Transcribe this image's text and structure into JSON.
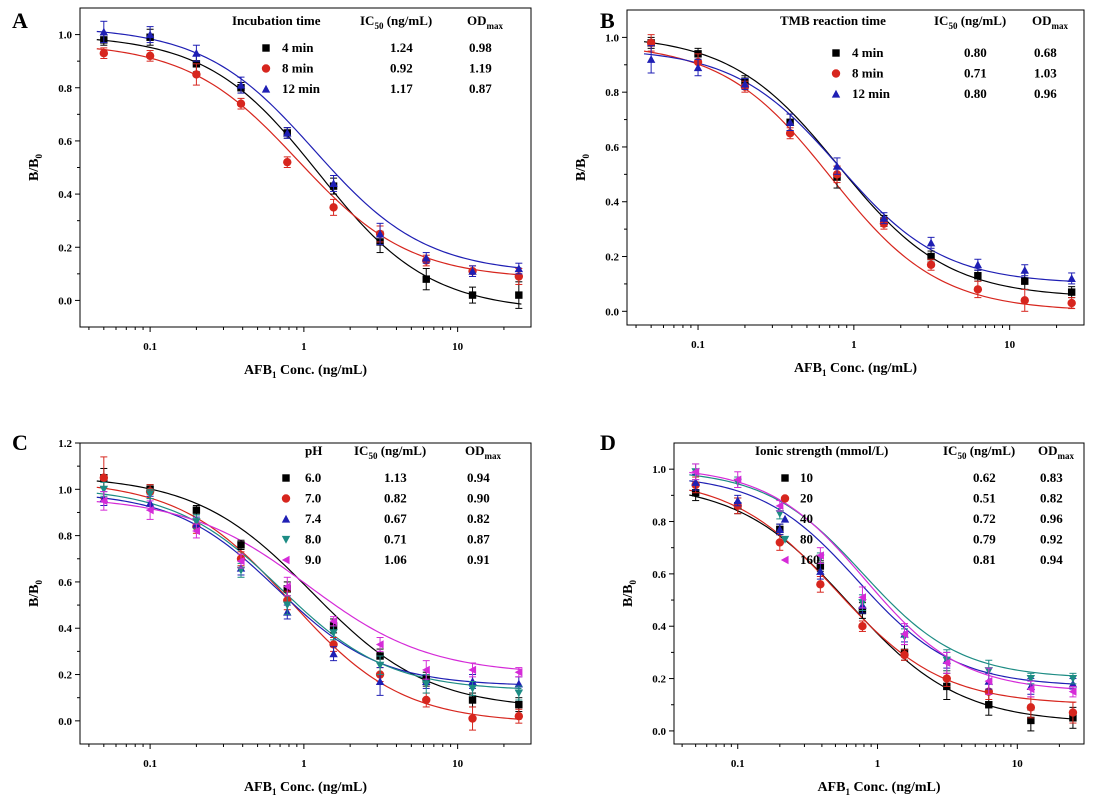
{
  "colors": {
    "black": "#000000",
    "red": "#d7261e",
    "blue": "#1f1fb4",
    "teal": "#1d8c84",
    "magenta": "#d52bd8"
  },
  "xlabel_parts": [
    "AFB",
    "1",
    " Conc. (ng/mL)"
  ],
  "ylabel_parts": [
    "B/B",
    "0"
  ],
  "chart_data": [
    {
      "panel": "A",
      "type": "scatter",
      "xlabel": "AFB1 Conc. (ng/mL)",
      "ylabel": "B/B0",
      "xscale": "log",
      "xlim": [
        0.035,
        30
      ],
      "ylim": [
        -0.1,
        1.1
      ],
      "xticks": [
        0.1,
        1,
        10
      ],
      "xtick_labels": [
        "0.1",
        "1",
        "10"
      ],
      "yticks": [
        0.0,
        0.2,
        0.4,
        0.6,
        0.8,
        1.0
      ],
      "ytick_labels": [
        "0.0",
        "0.2",
        "0.4",
        "0.6",
        "0.8",
        "1.0"
      ],
      "legend_header": [
        "Incubation time",
        "IC50 (ng/mL)",
        "ODmax"
      ],
      "x": [
        0.05,
        0.1,
        0.2,
        0.39,
        0.78,
        1.56,
        3.13,
        6.25,
        12.5,
        25
      ],
      "series": [
        {
          "name": "4 min",
          "ic50": "1.24",
          "odmax": "0.98",
          "color": "#000000",
          "marker": "square",
          "values": [
            0.98,
            0.99,
            0.89,
            0.8,
            0.63,
            0.43,
            0.22,
            0.08,
            0.02,
            0.02
          ],
          "errors": [
            0.02,
            0.03,
            0.03,
            0.02,
            0.02,
            0.03,
            0.04,
            0.04,
            0.03,
            0.05
          ],
          "fit": {
            "top": 1.0,
            "bottom": -0.04,
            "ic50": 1.24,
            "hill": 1.2
          }
        },
        {
          "name": "8 min",
          "ic50": "0.92",
          "odmax": "1.19",
          "color": "#d7261e",
          "marker": "circle",
          "values": [
            0.93,
            0.92,
            0.85,
            0.74,
            0.52,
            0.35,
            0.25,
            0.15,
            0.11,
            0.09
          ],
          "errors": [
            0.02,
            0.02,
            0.04,
            0.02,
            0.02,
            0.03,
            0.03,
            0.02,
            0.02,
            0.03
          ],
          "fit": {
            "top": 0.97,
            "bottom": 0.08,
            "ic50": 0.92,
            "hill": 1.2
          }
        },
        {
          "name": "12 min",
          "ic50": "1.17",
          "odmax": "0.87",
          "color": "#1f1fb4",
          "marker": "triangle",
          "values": [
            1.01,
            1.0,
            0.93,
            0.81,
            0.63,
            0.44,
            0.25,
            0.16,
            0.11,
            0.12
          ],
          "errors": [
            0.04,
            0.03,
            0.03,
            0.03,
            0.02,
            0.03,
            0.04,
            0.02,
            0.02,
            0.02
          ],
          "fit": {
            "top": 1.03,
            "bottom": 0.1,
            "ic50": 1.17,
            "hill": 1.2
          }
        }
      ]
    },
    {
      "panel": "B",
      "type": "scatter",
      "xlabel": "AFB1 Conc. (ng/mL)",
      "ylabel": "B/B0",
      "xscale": "log",
      "xlim": [
        0.035,
        30
      ],
      "ylim": [
        -0.05,
        1.1
      ],
      "xticks": [
        0.1,
        1,
        10
      ],
      "xtick_labels": [
        "0.1",
        "1",
        "10"
      ],
      "yticks": [
        0.0,
        0.2,
        0.4,
        0.6,
        0.8,
        1.0
      ],
      "ytick_labels": [
        "0.0",
        "0.2",
        "0.4",
        "0.6",
        "0.8",
        "1.0"
      ],
      "legend_header": [
        "TMB reaction time",
        "IC50 (ng/mL)",
        "ODmax"
      ],
      "x": [
        0.05,
        0.1,
        0.2,
        0.39,
        0.78,
        1.56,
        3.13,
        6.25,
        12.5,
        25
      ],
      "series": [
        {
          "name": "4 min",
          "ic50": "0.80",
          "odmax": "0.68",
          "color": "#000000",
          "marker": "square",
          "values": [
            0.98,
            0.94,
            0.84,
            0.69,
            0.49,
            0.33,
            0.2,
            0.13,
            0.11,
            0.07
          ],
          "errors": [
            0.02,
            0.02,
            0.02,
            0.03,
            0.04,
            0.02,
            0.02,
            0.02,
            0.03,
            0.02
          ],
          "fit": {
            "top": 1.01,
            "bottom": 0.05,
            "ic50": 0.8,
            "hill": 1.25
          }
        },
        {
          "name": "8 min",
          "ic50": "0.71",
          "odmax": "1.03",
          "color": "#d7261e",
          "marker": "circle",
          "values": [
            0.98,
            0.91,
            0.82,
            0.65,
            0.5,
            0.32,
            0.17,
            0.08,
            0.04,
            0.03
          ],
          "errors": [
            0.03,
            0.03,
            0.02,
            0.02,
            0.03,
            0.02,
            0.02,
            0.03,
            0.04,
            0.02
          ],
          "fit": {
            "top": 0.98,
            "bottom": 0.0,
            "ic50": 0.71,
            "hill": 1.25
          }
        },
        {
          "name": "12 min",
          "ic50": "0.80",
          "odmax": "0.96",
          "color": "#1f1fb4",
          "marker": "triangle",
          "values": [
            0.92,
            0.89,
            0.83,
            0.69,
            0.53,
            0.34,
            0.25,
            0.17,
            0.15,
            0.12
          ],
          "errors": [
            0.05,
            0.03,
            0.02,
            0.03,
            0.03,
            0.02,
            0.02,
            0.02,
            0.02,
            0.02
          ],
          "fit": {
            "top": 0.96,
            "bottom": 0.1,
            "ic50": 0.8,
            "hill": 1.3
          }
        }
      ]
    },
    {
      "panel": "C",
      "type": "scatter",
      "xlabel": "AFB1 Conc. (ng/mL)",
      "ylabel": "B/B0",
      "xscale": "log",
      "xlim": [
        0.035,
        30
      ],
      "ylim": [
        -0.1,
        1.2
      ],
      "xticks": [
        0.1,
        1,
        10
      ],
      "xtick_labels": [
        "0.1",
        "1",
        "10"
      ],
      "yticks": [
        0.0,
        0.2,
        0.4,
        0.6,
        0.8,
        1.0,
        1.2
      ],
      "ytick_labels": [
        "0.0",
        "0.2",
        "0.4",
        "0.6",
        "0.8",
        "1.0",
        "1.2"
      ],
      "legend_header": [
        "pH",
        "IC50 (ng/mL)",
        "ODmax"
      ],
      "x": [
        0.05,
        0.1,
        0.2,
        0.39,
        0.78,
        1.56,
        3.13,
        6.25,
        12.5,
        25
      ],
      "series": [
        {
          "name": "6.0",
          "ic50": "1.13",
          "odmax": "0.94",
          "color": "#000000",
          "marker": "square",
          "values": [
            1.05,
            1.0,
            0.91,
            0.76,
            0.57,
            0.41,
            0.28,
            0.18,
            0.09,
            0.07
          ],
          "errors": [
            0.04,
            0.02,
            0.02,
            0.02,
            0.03,
            0.03,
            0.03,
            0.03,
            0.03,
            0.03
          ],
          "fit": {
            "top": 1.06,
            "bottom": 0.05,
            "ic50": 1.13,
            "hill": 1.15
          }
        },
        {
          "name": "7.0",
          "ic50": "0.82",
          "odmax": "0.90",
          "color": "#d7261e",
          "marker": "circle",
          "values": [
            1.05,
            0.99,
            0.84,
            0.7,
            0.52,
            0.33,
            0.2,
            0.09,
            0.01,
            0.02
          ],
          "errors": [
            0.09,
            0.03,
            0.03,
            0.03,
            0.04,
            0.03,
            0.03,
            0.03,
            0.05,
            0.03
          ],
          "fit": {
            "top": 1.04,
            "bottom": -0.01,
            "ic50": 0.82,
            "hill": 1.2
          }
        },
        {
          "name": "7.4",
          "ic50": "0.67",
          "odmax": "0.82",
          "color": "#1f1fb4",
          "marker": "triangle",
          "values": [
            0.96,
            0.94,
            0.85,
            0.66,
            0.47,
            0.29,
            0.17,
            0.17,
            0.17,
            0.16
          ],
          "errors": [
            0.03,
            0.03,
            0.03,
            0.03,
            0.03,
            0.03,
            0.06,
            0.03,
            0.03,
            0.03
          ],
          "fit": {
            "top": 0.99,
            "bottom": 0.15,
            "ic50": 0.67,
            "hill": 1.3
          }
        },
        {
          "name": "8.0",
          "ic50": "0.71",
          "odmax": "0.87",
          "color": "#1d8c84",
          "marker": "triangle-down",
          "values": [
            1.0,
            0.98,
            0.86,
            0.65,
            0.5,
            0.38,
            0.24,
            0.16,
            0.14,
            0.12
          ],
          "errors": [
            0.03,
            0.02,
            0.03,
            0.03,
            0.04,
            0.03,
            0.04,
            0.04,
            0.03,
            0.03
          ],
          "fit": {
            "top": 1.01,
            "bottom": 0.13,
            "ic50": 0.71,
            "hill": 1.25
          }
        },
        {
          "name": "9.0",
          "ic50": "1.06",
          "odmax": "0.91",
          "color": "#d52bd8",
          "marker": "triangle-left",
          "values": [
            0.95,
            0.91,
            0.82,
            0.69,
            0.58,
            0.43,
            0.33,
            0.22,
            0.22,
            0.21
          ],
          "errors": [
            0.04,
            0.04,
            0.03,
            0.03,
            0.04,
            0.02,
            0.03,
            0.04,
            0.03,
            0.02
          ],
          "fit": {
            "top": 0.97,
            "bottom": 0.2,
            "ic50": 1.06,
            "hill": 1.1
          }
        }
      ]
    },
    {
      "panel": "D",
      "type": "scatter",
      "xlabel": "AFB1 Conc. (ng/mL)",
      "ylabel": "B/B0",
      "xscale": "log",
      "xlim": [
        0.035,
        30
      ],
      "ylim": [
        -0.05,
        1.1
      ],
      "xticks": [
        0.1,
        1,
        10
      ],
      "xtick_labels": [
        "0.1",
        "1",
        "10"
      ],
      "yticks": [
        0.0,
        0.2,
        0.4,
        0.6,
        0.8,
        1.0
      ],
      "ytick_labels": [
        "0.0",
        "0.2",
        "0.4",
        "0.6",
        "0.8",
        "1.0"
      ],
      "legend_header": [
        "Ionic strength (mmol/L)",
        "IC50 (ng/mL)",
        "ODmax"
      ],
      "x": [
        0.05,
        0.1,
        0.2,
        0.39,
        0.78,
        1.56,
        3.13,
        6.25,
        12.5,
        25
      ],
      "series": [
        {
          "name": "10",
          "ic50": "0.62",
          "odmax": "0.83",
          "color": "#000000",
          "marker": "square",
          "values": [
            0.91,
            0.86,
            0.77,
            0.63,
            0.46,
            0.3,
            0.17,
            0.1,
            0.04,
            0.05
          ],
          "errors": [
            0.03,
            0.03,
            0.02,
            0.02,
            0.03,
            0.03,
            0.05,
            0.04,
            0.04,
            0.04
          ],
          "fit": {
            "top": 0.95,
            "bottom": 0.03,
            "ic50": 0.62,
            "hill": 1.1
          }
        },
        {
          "name": "20",
          "ic50": "0.51",
          "odmax": "0.82",
          "color": "#d7261e",
          "marker": "circle",
          "values": [
            0.94,
            0.86,
            0.72,
            0.56,
            0.4,
            0.29,
            0.2,
            0.15,
            0.09,
            0.07
          ],
          "errors": [
            0.03,
            0.03,
            0.03,
            0.03,
            0.02,
            0.02,
            0.03,
            0.03,
            0.04,
            0.04
          ],
          "fit": {
            "top": 0.97,
            "bottom": 0.1,
            "ic50": 0.51,
            "hill": 1.15
          }
        },
        {
          "name": "40",
          "ic50": "0.72",
          "odmax": "0.96",
          "color": "#1f1fb4",
          "marker": "triangle",
          "values": [
            0.95,
            0.88,
            0.77,
            0.61,
            0.48,
            0.37,
            0.27,
            0.19,
            0.17,
            0.18
          ],
          "errors": [
            0.03,
            0.02,
            0.02,
            0.03,
            0.03,
            0.03,
            0.03,
            0.03,
            0.03,
            0.02
          ],
          "fit": {
            "top": 0.98,
            "bottom": 0.17,
            "ic50": 0.72,
            "hill": 1.25
          }
        },
        {
          "name": "80",
          "ic50": "0.79",
          "odmax": "0.92",
          "color": "#1d8c84",
          "marker": "triangle-down",
          "values": [
            0.99,
            0.95,
            0.83,
            0.66,
            0.49,
            0.36,
            0.27,
            0.23,
            0.2,
            0.2
          ],
          "errors": [
            0.03,
            0.02,
            0.02,
            0.02,
            0.03,
            0.03,
            0.04,
            0.04,
            0.02,
            0.02
          ],
          "fit": {
            "top": 1.0,
            "bottom": 0.2,
            "ic50": 0.79,
            "hill": 1.25
          }
        },
        {
          "name": "160",
          "ic50": "0.81",
          "odmax": "0.94",
          "color": "#d52bd8",
          "marker": "triangle-left",
          "values": [
            0.99,
            0.96,
            0.86,
            0.67,
            0.51,
            0.37,
            0.26,
            0.19,
            0.16,
            0.15
          ],
          "errors": [
            0.03,
            0.03,
            0.02,
            0.03,
            0.04,
            0.04,
            0.04,
            0.05,
            0.03,
            0.02
          ],
          "fit": {
            "top": 1.01,
            "bottom": 0.15,
            "ic50": 0.81,
            "hill": 1.25
          }
        }
      ]
    }
  ]
}
